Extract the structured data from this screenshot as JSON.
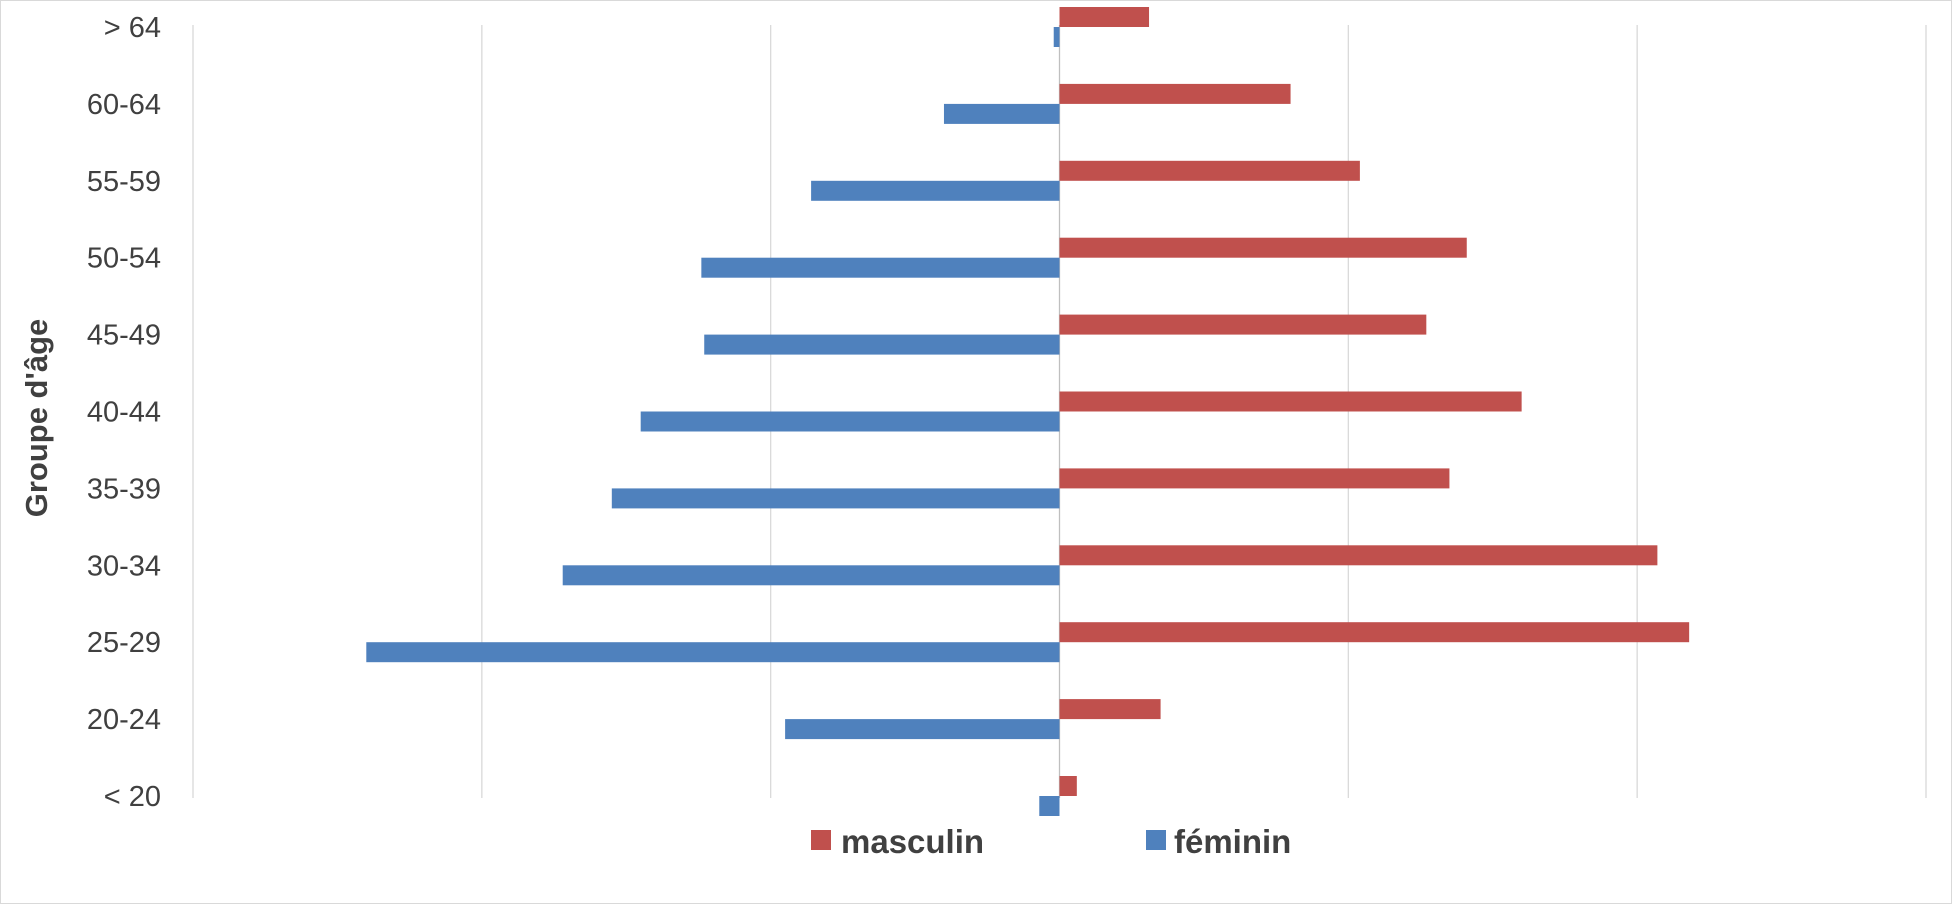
{
  "chart_data": {
    "type": "bar",
    "orientation": "horizontal",
    "layout": "population-pyramid",
    "title": "",
    "xlabel": "",
    "ylabel": "Groupe d'âge",
    "categories": [
      "< 20",
      "20-24",
      "25-29",
      "30-34",
      "35-39",
      "40-44",
      "45-49",
      "50-54",
      "55-59",
      "60-64",
      "> 64"
    ],
    "series": [
      {
        "name": "masculin",
        "side": "right",
        "color": "#c0504d",
        "values": [
          0.6,
          3.5,
          21.8,
          20.7,
          13.5,
          16.0,
          12.7,
          14.1,
          10.4,
          8.0,
          3.1
        ]
      },
      {
        "name": "féminin",
        "side": "left",
        "color": "#4f81bd",
        "values": [
          0.7,
          9.5,
          24.0,
          17.2,
          15.5,
          14.5,
          12.3,
          12.4,
          8.6,
          4.0,
          0.2
        ]
      }
    ],
    "xlim": [
      -30,
      30
    ],
    "x_gridlines": [
      -30,
      -20,
      -10,
      0,
      10,
      20,
      30
    ],
    "x_tick_labels_visible": false,
    "grid": true,
    "legend": {
      "placement": "bottom",
      "order": [
        "masculin",
        "féminin"
      ]
    }
  }
}
